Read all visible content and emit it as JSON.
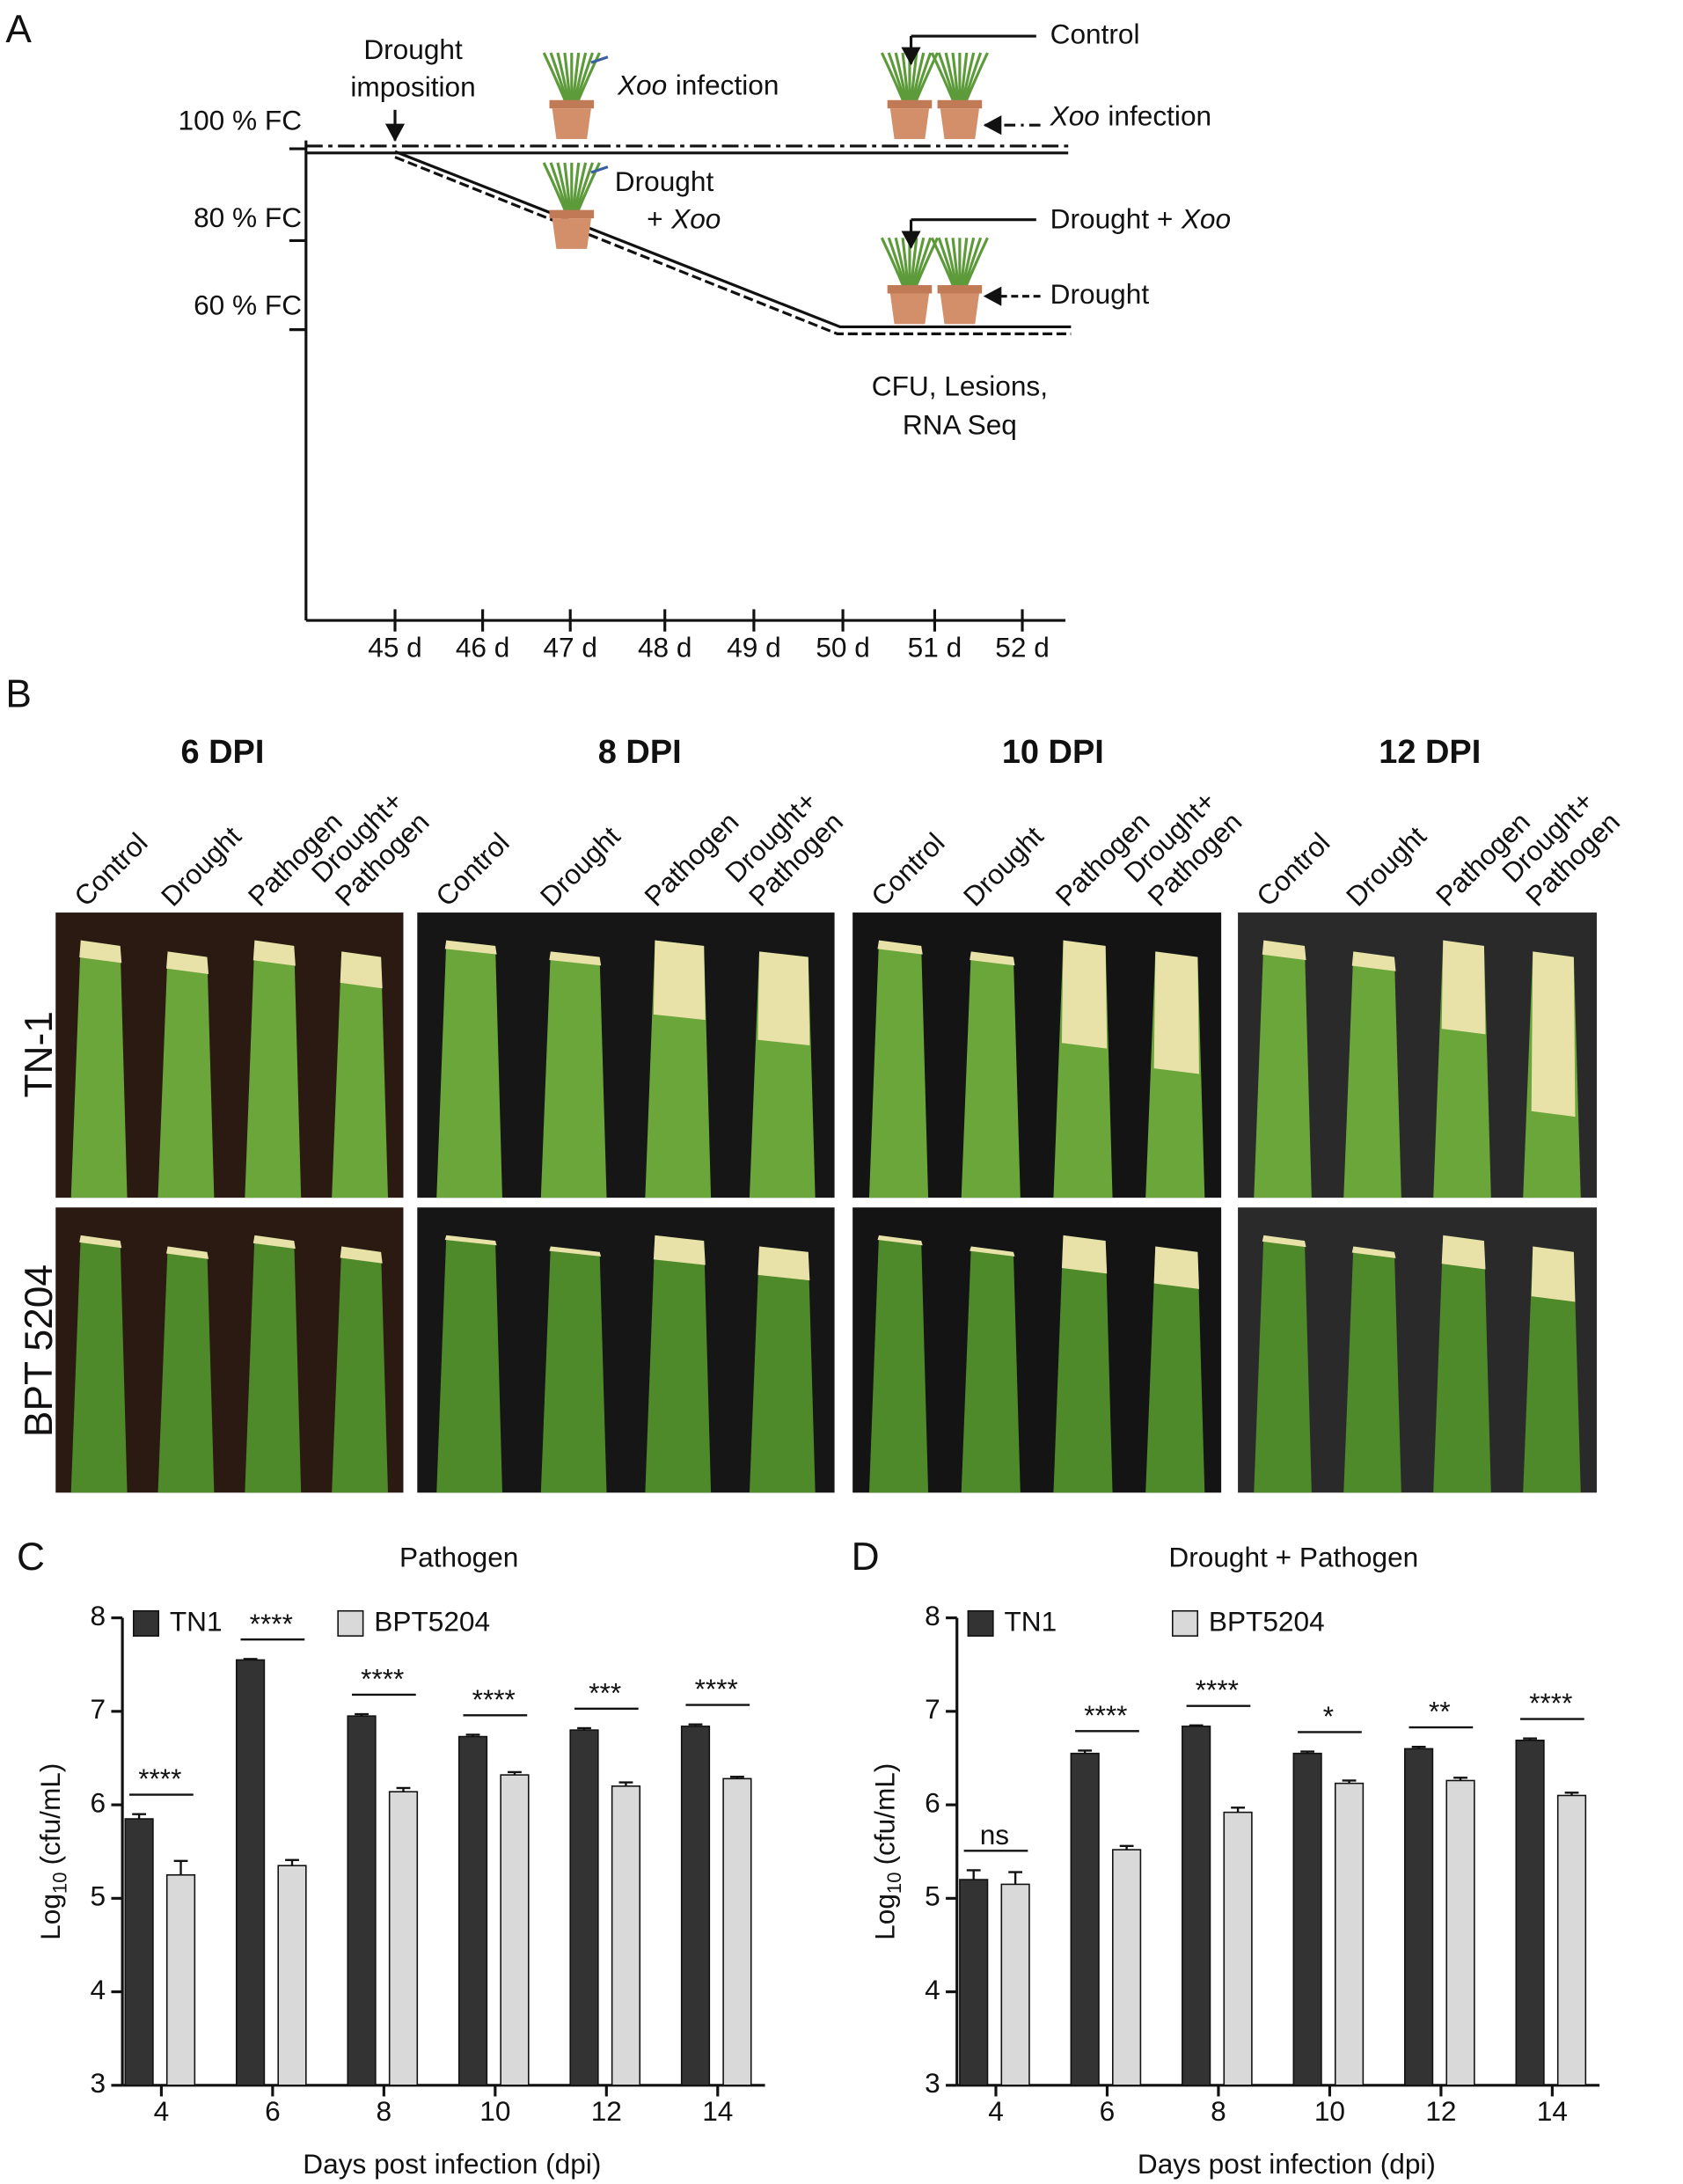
{
  "panel_a": {
    "label": "A",
    "y_labels": [
      "100 % FC",
      "80 % FC",
      "60 % FC"
    ],
    "x_labels": [
      "45 d",
      "46 d",
      "47 d",
      "48 d",
      "49 d",
      "50 d",
      "51 d",
      "52 d"
    ],
    "drought_imposition": [
      "Drought",
      "imposition"
    ],
    "xoo_infection": [
      "Xoo",
      "infection"
    ],
    "drought_xoo": [
      "Drought",
      "+",
      "Xoo"
    ],
    "legend": {
      "control": "Control",
      "xoo_infection": [
        "Xoo",
        "infection"
      ],
      "drought_xoo": [
        "Drought +",
        "Xoo"
      ],
      "drought": "Drought"
    },
    "outcome": [
      "CFU, Lesions,",
      "RNA Seq"
    ]
  },
  "panel_b": {
    "label": "B",
    "time_points": [
      "6 DPI",
      "8 DPI",
      "10 DPI",
      "12 DPI"
    ],
    "conditions": [
      [
        "Control"
      ],
      [
        "Drought"
      ],
      [
        "Pathogen"
      ],
      [
        "Drought+",
        "Pathogen"
      ]
    ],
    "rows": [
      "TN-1",
      "BPT 5204"
    ]
  },
  "chart_data": [
    {
      "type": "bar",
      "panel_label": "C",
      "title": "Pathogen",
      "ylabel": {
        "main": "Log",
        "subscript": "10",
        "unit": "(cfu/mL)"
      },
      "xlabel": "Days post infection (dpi)",
      "categories": [
        "4",
        "6",
        "8",
        "10",
        "12",
        "14"
      ],
      "series": [
        {
          "name": "TN1",
          "color": "#333333",
          "values": [
            5.85,
            7.55,
            6.95,
            6.73,
            6.8,
            6.84
          ],
          "errors": [
            0.05,
            0.01,
            0.02,
            0.02,
            0.02,
            0.02
          ]
        },
        {
          "name": "BPT5204",
          "color": "#d9d9d9",
          "values": [
            5.25,
            5.35,
            6.14,
            6.32,
            6.2,
            6.28
          ],
          "errors": [
            0.15,
            0.06,
            0.04,
            0.03,
            0.04,
            0.02
          ]
        }
      ],
      "significance": [
        "****",
        "****",
        "****",
        "****",
        "***",
        "****"
      ],
      "ylim": [
        3,
        8
      ],
      "yticks": [
        3,
        4,
        5,
        6,
        7,
        8
      ]
    },
    {
      "type": "bar",
      "panel_label": "D",
      "title": "Drought + Pathogen",
      "ylabel": {
        "main": "Log",
        "subscript": "10",
        "unit": "(cfu/mL)"
      },
      "xlabel": "Days post infection (dpi)",
      "categories": [
        "4",
        "6",
        "8",
        "10",
        "12",
        "14"
      ],
      "series": [
        {
          "name": "TN1",
          "color": "#333333",
          "values": [
            5.2,
            6.55,
            6.84,
            6.55,
            6.6,
            6.69
          ],
          "errors": [
            0.1,
            0.03,
            0.01,
            0.02,
            0.02,
            0.02
          ]
        },
        {
          "name": "BPT5204",
          "color": "#d9d9d9",
          "values": [
            5.15,
            5.52,
            5.92,
            6.23,
            6.26,
            6.1
          ],
          "errors": [
            0.13,
            0.04,
            0.05,
            0.03,
            0.03,
            0.03
          ]
        }
      ],
      "significance": [
        "ns",
        "****",
        "****",
        "*",
        "**",
        "****"
      ],
      "ylim": [
        3,
        8
      ],
      "yticks": [
        3,
        4,
        5,
        6,
        7,
        8
      ]
    }
  ]
}
